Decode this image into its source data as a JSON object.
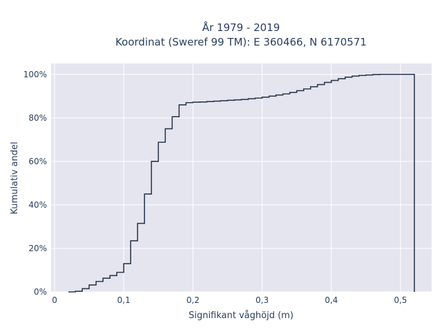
{
  "chart_data": {
    "type": "line",
    "line_shape": "step",
    "title_lines": [
      "År 1979 - 2019",
      "Koordinat (Sweref 99 TM): E 360466, N 6170571"
    ],
    "xlabel": "Signifikant våghöjd (m)",
    "ylabel": "Kumulativ andel",
    "xlim": [
      -0.005,
      0.545
    ],
    "ylim": [
      0,
      1.05
    ],
    "x_ticks": [
      0,
      0.1,
      0.2,
      0.3,
      0.4,
      0.5
    ],
    "x_tick_labels": [
      "0",
      "0,1",
      "0,2",
      "0,3",
      "0,4",
      "0,5"
    ],
    "y_ticks": [
      0,
      0.2,
      0.4,
      0.6,
      0.8,
      1.0
    ],
    "y_tick_labels": [
      "0%",
      "20%",
      "40%",
      "60%",
      "80%",
      "100%"
    ],
    "grid": true,
    "background_color": "#e5e5f0",
    "line_color": "#2d3b4e",
    "series": [
      {
        "x": [
          0.02,
          0.03,
          0.04,
          0.05,
          0.06,
          0.07,
          0.08,
          0.09,
          0.1,
          0.11,
          0.12,
          0.13,
          0.14,
          0.15,
          0.16,
          0.17,
          0.18,
          0.19,
          0.2,
          0.21,
          0.22,
          0.23,
          0.24,
          0.25,
          0.26,
          0.27,
          0.28,
          0.29,
          0.3,
          0.31,
          0.32,
          0.33,
          0.34,
          0.35,
          0.36,
          0.37,
          0.38,
          0.39,
          0.4,
          0.41,
          0.42,
          0.43,
          0.44,
          0.45,
          0.46,
          0.47,
          0.48,
          0.49,
          0.5,
          0.51,
          0.52
        ],
        "y": [
          0.0,
          0.003,
          0.015,
          0.032,
          0.048,
          0.063,
          0.075,
          0.09,
          0.13,
          0.235,
          0.315,
          0.45,
          0.6,
          0.688,
          0.75,
          0.805,
          0.86,
          0.87,
          0.872,
          0.873,
          0.875,
          0.877,
          0.879,
          0.881,
          0.883,
          0.885,
          0.888,
          0.891,
          0.895,
          0.9,
          0.905,
          0.91,
          0.917,
          0.925,
          0.933,
          0.943,
          0.953,
          0.963,
          0.972,
          0.98,
          0.987,
          0.992,
          0.995,
          0.997,
          0.999,
          1.0,
          1.0,
          1.0,
          1.0,
          1.0,
          0.0
        ]
      }
    ]
  }
}
